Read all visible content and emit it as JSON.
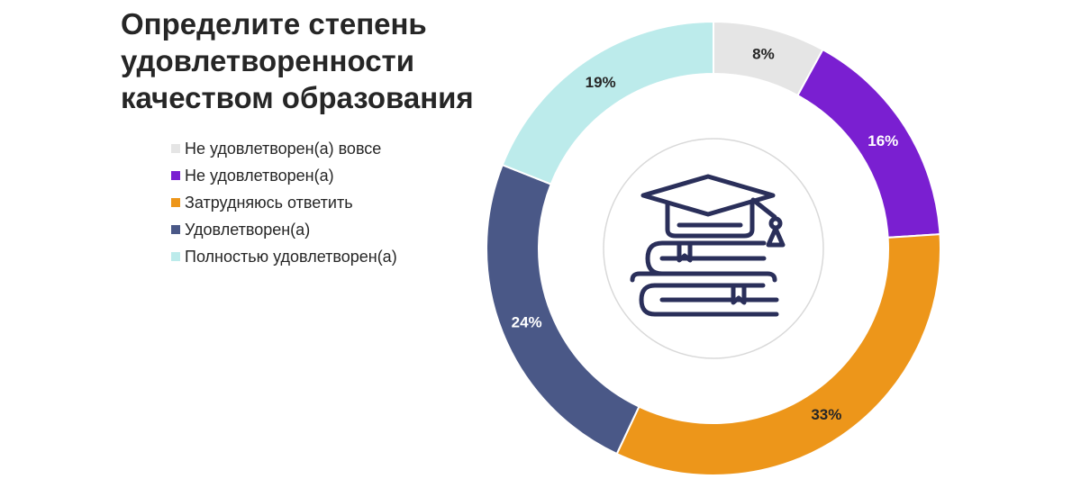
{
  "chart_data": {
    "type": "pie",
    "subtype": "donut",
    "title_lines": [
      "Определите степень",
      "удовлетворенности",
      "качеством образования"
    ],
    "legend_position": "left",
    "slices": [
      {
        "name": "Не удовлетворен(а) вовсе",
        "value": 8,
        "label": "8%",
        "color": "#E5E5E5",
        "label_color": "#262626"
      },
      {
        "name": "Не удовлетворен(а)",
        "value": 16,
        "label": "16%",
        "color": "#7A1FD1",
        "label_color": "#FFFFFF"
      },
      {
        "name": "Затрудняюсь ответить",
        "value": 33,
        "label": "33%",
        "color": "#ED961A",
        "label_color": "#262626"
      },
      {
        "name": "Удовлетворен(а)",
        "value": 24,
        "label": "24%",
        "color": "#4A5887",
        "label_color": "#FFFFFF"
      },
      {
        "name": "Полностью удовлетворен(а)",
        "value": 19,
        "label": "19%",
        "color": "#BCEBEB",
        "label_color": "#262626"
      }
    ],
    "center_icon": "graduation-cap-books-icon",
    "icon_color": "#2A2F5A"
  }
}
